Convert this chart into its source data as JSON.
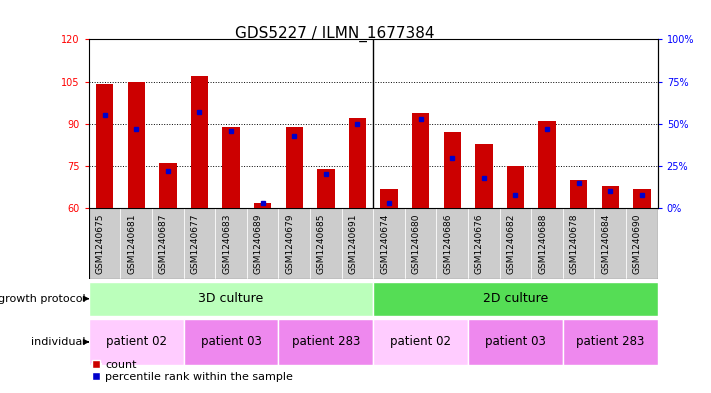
{
  "title": "GDS5227 / ILMN_1677384",
  "samples": [
    "GSM1240675",
    "GSM1240681",
    "GSM1240687",
    "GSM1240677",
    "GSM1240683",
    "GSM1240689",
    "GSM1240679",
    "GSM1240685",
    "GSM1240691",
    "GSM1240674",
    "GSM1240680",
    "GSM1240686",
    "GSM1240676",
    "GSM1240682",
    "GSM1240688",
    "GSM1240678",
    "GSM1240684",
    "GSM1240690"
  ],
  "counts": [
    104,
    105,
    76,
    107,
    89,
    62,
    89,
    74,
    92,
    67,
    94,
    87,
    83,
    75,
    91,
    70,
    68,
    67
  ],
  "percentile_ranks": [
    55,
    47,
    22,
    57,
    46,
    3,
    43,
    20,
    50,
    3,
    53,
    30,
    18,
    8,
    47,
    15,
    10,
    8
  ],
  "ylim_left": [
    60,
    120
  ],
  "ylim_right": [
    0,
    100
  ],
  "yticks_left": [
    60,
    75,
    90,
    105,
    120
  ],
  "yticks_right": [
    0,
    25,
    50,
    75,
    100
  ],
  "bar_color": "#cc0000",
  "dot_color": "#0000cc",
  "bar_baseline": 60,
  "group_3d_color": "#bbffbb",
  "group_2d_color": "#55dd55",
  "patient_02_color": "#ffccff",
  "patient_03_color": "#ee88ee",
  "patient_283_color": "#ee88ee",
  "growth_protocol_label": "growth protocol",
  "individual_label": "individual",
  "legend_count": "count",
  "legend_percentile": "percentile rank within the sample",
  "bar_width": 0.55,
  "title_fontsize": 11,
  "tick_label_fontsize": 7,
  "sample_fontsize": 6.5,
  "patient_fontsize": 8.5,
  "group_fontsize": 9,
  "annotation_label_fontsize": 8,
  "xtick_bg_color": "#cccccc"
}
